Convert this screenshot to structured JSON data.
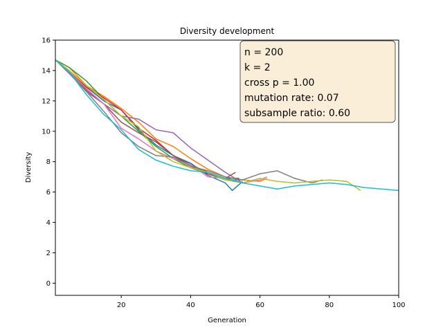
{
  "chart_data": {
    "type": "line",
    "title": "Diversity development",
    "xlabel": "Generation",
    "ylabel": "Diversity",
    "xlim": [
      1,
      100
    ],
    "ylim": [
      -0.8,
      16
    ],
    "xticks": [
      20,
      40,
      60,
      80,
      100
    ],
    "yticks": [
      0,
      2,
      4,
      6,
      8,
      10,
      12,
      14,
      16
    ],
    "grid": false,
    "legend": "none",
    "annotation": {
      "lines": [
        "n = 200",
        "k = 2",
        "cross p = 1.00",
        "mutation rate: 0.07",
        "subsample ratio: 0.60"
      ],
      "placement": "top-right",
      "background": "#f5deb3",
      "border": "#555555"
    },
    "series": [
      {
        "color": "#1f77b4",
        "x": [
          1,
          5,
          10,
          15,
          20,
          25,
          30,
          35,
          40,
          45,
          50,
          52,
          55
        ],
        "y": [
          14.7,
          13.9,
          12.9,
          12.0,
          11.4,
          10.1,
          9.1,
          8.4,
          7.9,
          7.1,
          6.6,
          6.1,
          6.7
        ]
      },
      {
        "color": "#ff7f0e",
        "x": [
          1,
          5,
          10,
          15,
          20,
          25,
          30,
          35,
          40,
          45,
          50,
          55,
          60,
          62
        ],
        "y": [
          14.7,
          14.2,
          13.0,
          12.3,
          11.5,
          10.6,
          9.5,
          9.0,
          8.2,
          7.5,
          7.0,
          6.8,
          6.7,
          6.9
        ]
      },
      {
        "color": "#2ca02c",
        "x": [
          1,
          5,
          10,
          15,
          20,
          25,
          30,
          35,
          40,
          45,
          50,
          55
        ],
        "y": [
          14.7,
          14.2,
          13.3,
          12.1,
          11.0,
          10.0,
          9.0,
          8.2,
          7.6,
          7.2,
          6.8,
          6.8
        ]
      },
      {
        "color": "#d62728",
        "x": [
          1,
          5,
          10,
          15,
          20,
          25,
          30,
          35,
          40,
          45,
          50,
          54
        ],
        "y": [
          14.7,
          13.9,
          12.9,
          12.2,
          11.4,
          10.2,
          9.4,
          8.4,
          7.7,
          7.2,
          6.9,
          6.9
        ]
      },
      {
        "color": "#9467bd",
        "x": [
          1,
          5,
          10,
          15,
          20,
          25,
          30,
          35,
          40,
          45,
          50,
          55
        ],
        "y": [
          14.7,
          13.8,
          12.6,
          11.8,
          11.0,
          10.8,
          10.1,
          9.9,
          8.9,
          8.1,
          7.3,
          6.6
        ]
      },
      {
        "color": "#8c564b",
        "x": [
          1,
          5,
          10,
          15,
          20,
          25,
          30,
          35,
          40,
          45,
          50,
          53
        ],
        "y": [
          14.7,
          13.9,
          12.7,
          11.8,
          10.6,
          9.9,
          9.3,
          8.4,
          7.8,
          7.3,
          6.9,
          7.3
        ]
      },
      {
        "color": "#e377c2",
        "x": [
          1,
          5,
          10,
          15,
          20,
          25,
          30,
          35,
          40,
          45,
          50,
          55,
          60,
          62
        ],
        "y": [
          14.7,
          13.9,
          12.8,
          11.8,
          10.2,
          9.5,
          8.7,
          8.2,
          7.8,
          7.0,
          6.9,
          6.6,
          6.8,
          7.0
        ]
      },
      {
        "color": "#7f7f7f",
        "x": [
          1,
          5,
          10,
          15,
          20,
          25,
          30,
          35,
          40,
          45,
          50,
          55,
          60,
          65,
          70,
          75,
          78
        ],
        "y": [
          14.7,
          13.9,
          12.6,
          11.3,
          9.9,
          9.0,
          8.4,
          8.3,
          7.7,
          7.4,
          7.0,
          6.8,
          7.2,
          7.4,
          6.9,
          6.6,
          6.8
        ]
      },
      {
        "color": "#bcbd22",
        "x": [
          1,
          5,
          10,
          15,
          20,
          25,
          30,
          35,
          40,
          45,
          50,
          55,
          60,
          65,
          70,
          75,
          80,
          85,
          89
        ],
        "y": [
          14.7,
          14.0,
          13.0,
          12.1,
          11.0,
          10.3,
          8.7,
          8.0,
          7.6,
          7.3,
          6.8,
          6.6,
          6.9,
          6.7,
          6.6,
          6.7,
          6.8,
          6.7,
          6.1
        ]
      },
      {
        "color": "#17becf",
        "x": [
          1,
          5,
          10,
          15,
          20,
          25,
          30,
          35,
          40,
          45,
          50,
          55,
          60,
          65,
          70,
          75,
          80,
          85,
          90,
          95,
          100
        ],
        "y": [
          14.7,
          13.9,
          12.4,
          11.1,
          10.1,
          8.8,
          8.1,
          7.7,
          7.4,
          7.3,
          6.9,
          6.6,
          6.4,
          6.2,
          6.4,
          6.5,
          6.6,
          6.5,
          6.3,
          6.2,
          6.1
        ]
      }
    ]
  }
}
